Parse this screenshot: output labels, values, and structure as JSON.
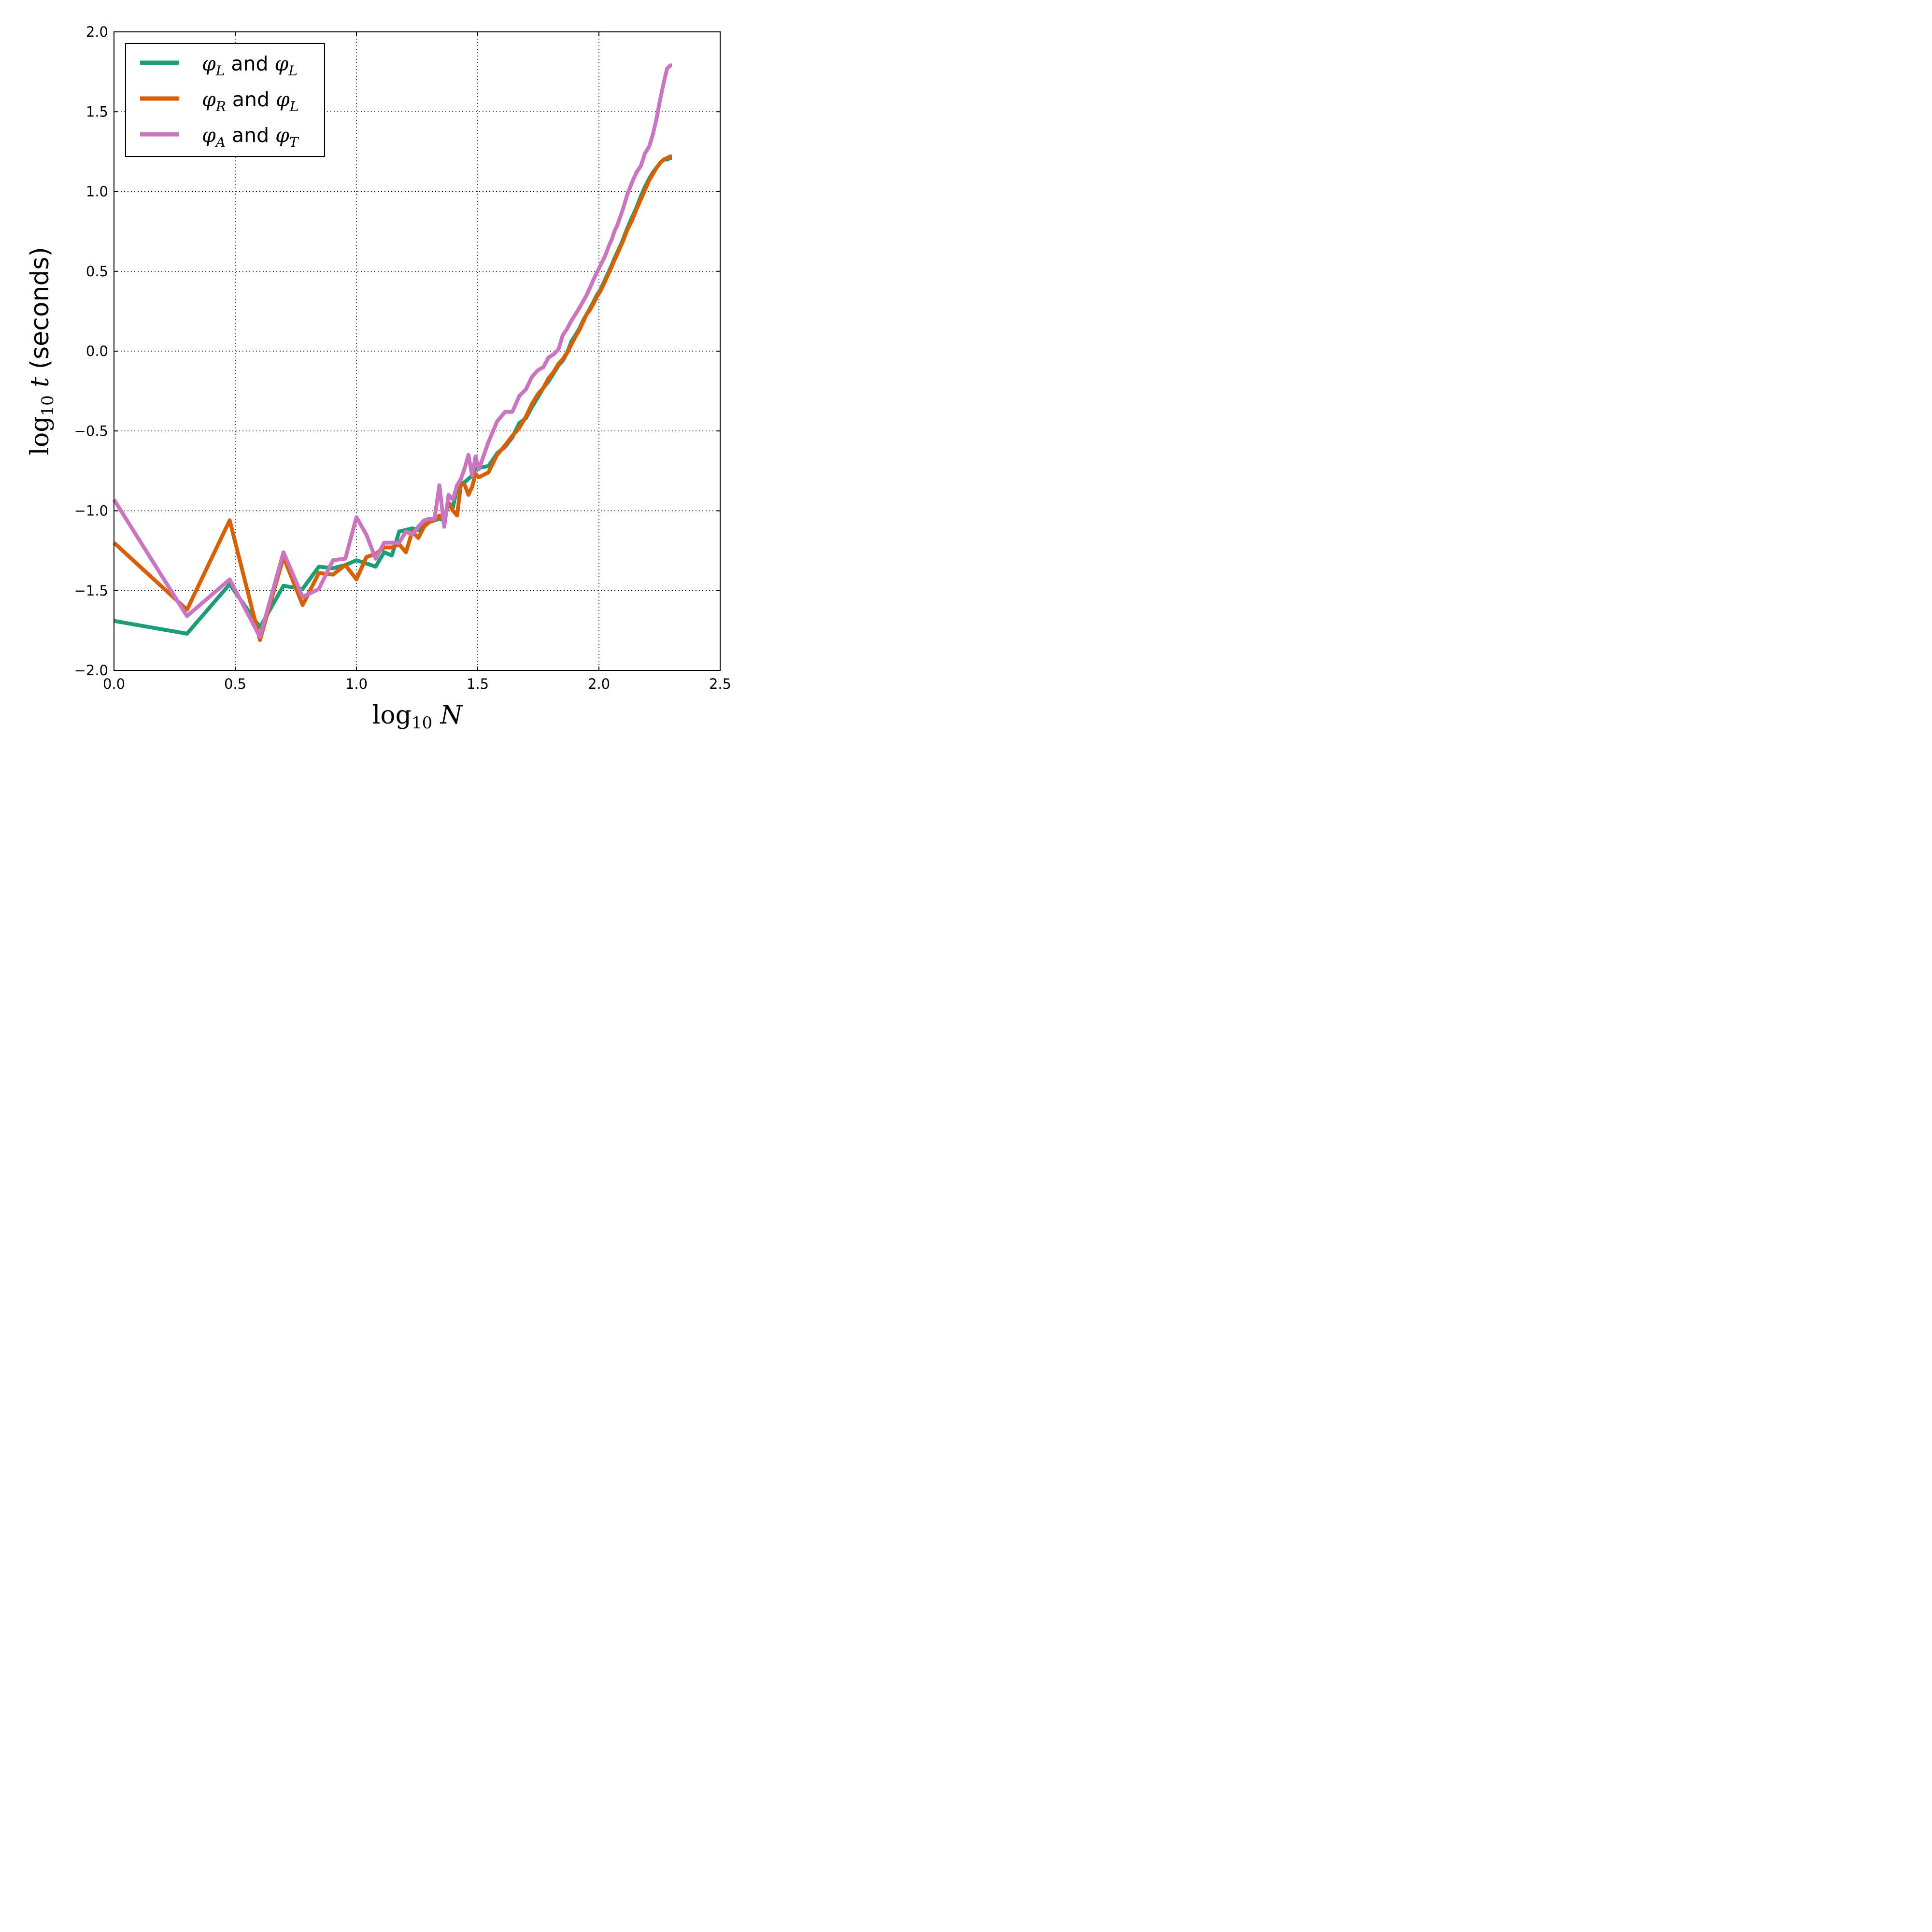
{
  "chart_data": {
    "type": "line",
    "title": "",
    "xlabel": "log10 N",
    "ylabel": "log10 t (seconds)",
    "xlim": [
      0.0,
      2.5
    ],
    "ylim": [
      -2.0,
      2.0
    ],
    "xticks": [
      "0.0",
      "0.5",
      "1.0",
      "1.5",
      "2.0",
      "2.5"
    ],
    "yticks": [
      "−2.0",
      "−1.5",
      "−1.0",
      "−0.5",
      "0.0",
      "0.5",
      "1.0",
      "1.5",
      "2.0"
    ],
    "grid": true,
    "legend_position": "upper-left",
    "series": [
      {
        "name": "φL and φL",
        "color": "#1b9e77",
        "x": [
          0.0,
          0.301,
          0.477,
          0.602,
          0.699,
          0.778,
          0.845,
          0.903,
          0.954,
          1.0,
          1.041,
          1.079,
          1.114,
          1.146,
          1.176,
          1.204,
          1.23,
          1.255,
          1.279,
          1.301,
          1.322,
          1.342,
          1.362,
          1.38,
          1.398,
          1.415,
          1.431,
          1.447,
          1.462,
          1.477,
          1.491,
          1.505,
          1.544,
          1.58,
          1.613,
          1.643,
          1.672,
          1.699,
          1.724,
          1.748,
          1.771,
          1.792,
          1.813,
          1.833,
          1.851,
          1.869,
          1.886,
          1.903,
          1.919,
          1.934,
          1.949,
          1.964,
          1.978,
          1.991,
          2.004,
          2.017,
          2.029,
          2.041,
          2.053,
          2.064,
          2.076,
          2.097,
          2.117,
          2.137,
          2.155,
          2.173,
          2.19,
          2.207,
          2.223,
          2.238,
          2.253,
          2.267,
          2.281,
          2.294,
          2.301
        ],
        "y": [
          -1.69,
          -1.77,
          -1.46,
          -1.73,
          -1.47,
          -1.49,
          -1.35,
          -1.36,
          -1.34,
          -1.31,
          -1.33,
          -1.35,
          -1.26,
          -1.28,
          -1.13,
          -1.12,
          -1.11,
          -1.12,
          -1.09,
          -1.07,
          -1.06,
          -1.05,
          -1.06,
          -0.95,
          -0.98,
          -0.85,
          -0.83,
          -0.82,
          -0.8,
          -0.78,
          -0.74,
          -0.73,
          -0.72,
          -0.64,
          -0.6,
          -0.54,
          -0.45,
          -0.42,
          -0.35,
          -0.29,
          -0.23,
          -0.19,
          -0.14,
          -0.09,
          -0.06,
          -0.01,
          0.06,
          0.1,
          0.14,
          0.19,
          0.23,
          0.27,
          0.31,
          0.35,
          0.38,
          0.42,
          0.46,
          0.5,
          0.54,
          0.58,
          0.62,
          0.69,
          0.77,
          0.84,
          0.9,
          0.97,
          1.03,
          1.08,
          1.12,
          1.15,
          1.18,
          1.2,
          1.2,
          1.21,
          1.21
        ]
      },
      {
        "name": "φR and φL",
        "color": "#d95f02",
        "x": [
          0.0,
          0.301,
          0.477,
          0.602,
          0.699,
          0.778,
          0.845,
          0.903,
          0.954,
          1.0,
          1.041,
          1.079,
          1.114,
          1.146,
          1.176,
          1.204,
          1.23,
          1.255,
          1.279,
          1.301,
          1.322,
          1.342,
          1.362,
          1.38,
          1.398,
          1.415,
          1.431,
          1.447,
          1.462,
          1.477,
          1.491,
          1.505,
          1.544,
          1.58,
          1.613,
          1.643,
          1.672,
          1.699,
          1.724,
          1.748,
          1.771,
          1.792,
          1.813,
          1.833,
          1.851,
          1.869,
          1.886,
          1.903,
          1.919,
          1.934,
          1.949,
          1.964,
          1.978,
          1.991,
          2.004,
          2.017,
          2.029,
          2.041,
          2.053,
          2.064,
          2.076,
          2.097,
          2.117,
          2.137,
          2.155,
          2.173,
          2.19,
          2.207,
          2.223,
          2.238,
          2.253,
          2.267,
          2.281,
          2.294,
          2.301
        ],
        "y": [
          -1.2,
          -1.62,
          -1.06,
          -1.81,
          -1.29,
          -1.59,
          -1.39,
          -1.4,
          -1.34,
          -1.43,
          -1.29,
          -1.27,
          -1.23,
          -1.23,
          -1.21,
          -1.26,
          -1.13,
          -1.17,
          -1.1,
          -1.07,
          -1.06,
          -1.03,
          -1.05,
          -0.95,
          -1.0,
          -1.03,
          -0.83,
          -0.84,
          -0.9,
          -0.85,
          -0.77,
          -0.79,
          -0.76,
          -0.65,
          -0.59,
          -0.53,
          -0.48,
          -0.41,
          -0.33,
          -0.27,
          -0.23,
          -0.17,
          -0.13,
          -0.08,
          -0.05,
          -0.01,
          0.04,
          0.09,
          0.13,
          0.18,
          0.23,
          0.26,
          0.3,
          0.34,
          0.37,
          0.41,
          0.45,
          0.49,
          0.53,
          0.57,
          0.61,
          0.68,
          0.76,
          0.82,
          0.89,
          0.95,
          1.01,
          1.07,
          1.11,
          1.15,
          1.18,
          1.2,
          1.21,
          1.22,
          1.22
        ]
      },
      {
        "name": "φA and φT",
        "color": "#cb74bf",
        "x": [
          0.0,
          0.301,
          0.477,
          0.602,
          0.699,
          0.778,
          0.845,
          0.903,
          0.954,
          1.0,
          1.041,
          1.079,
          1.114,
          1.146,
          1.176,
          1.204,
          1.23,
          1.255,
          1.279,
          1.301,
          1.322,
          1.342,
          1.362,
          1.38,
          1.398,
          1.415,
          1.431,
          1.447,
          1.462,
          1.477,
          1.491,
          1.505,
          1.544,
          1.58,
          1.613,
          1.643,
          1.672,
          1.699,
          1.724,
          1.748,
          1.771,
          1.792,
          1.813,
          1.833,
          1.851,
          1.869,
          1.886,
          1.903,
          1.919,
          1.934,
          1.949,
          1.964,
          1.978,
          1.991,
          2.004,
          2.017,
          2.029,
          2.041,
          2.053,
          2.064,
          2.076,
          2.097,
          2.117,
          2.137,
          2.155,
          2.173,
          2.19,
          2.207,
          2.223,
          2.238,
          2.253,
          2.267,
          2.281,
          2.294,
          2.301
        ],
        "y": [
          -0.93,
          -1.66,
          -1.43,
          -1.79,
          -1.26,
          -1.54,
          -1.49,
          -1.31,
          -1.3,
          -1.04,
          -1.15,
          -1.3,
          -1.2,
          -1.2,
          -1.2,
          -1.13,
          -1.15,
          -1.1,
          -1.06,
          -1.05,
          -1.05,
          -0.84,
          -1.1,
          -0.9,
          -0.93,
          -0.84,
          -0.8,
          -0.73,
          -0.65,
          -0.78,
          -0.66,
          -0.74,
          -0.57,
          -0.44,
          -0.38,
          -0.38,
          -0.28,
          -0.24,
          -0.16,
          -0.12,
          -0.1,
          -0.04,
          -0.02,
          0.01,
          0.1,
          0.14,
          0.19,
          0.23,
          0.27,
          0.31,
          0.35,
          0.4,
          0.45,
          0.49,
          0.53,
          0.57,
          0.61,
          0.66,
          0.7,
          0.75,
          0.79,
          0.88,
          0.98,
          1.06,
          1.12,
          1.16,
          1.24,
          1.28,
          1.36,
          1.46,
          1.58,
          1.68,
          1.77,
          1.79,
          1.79
        ]
      }
    ]
  }
}
